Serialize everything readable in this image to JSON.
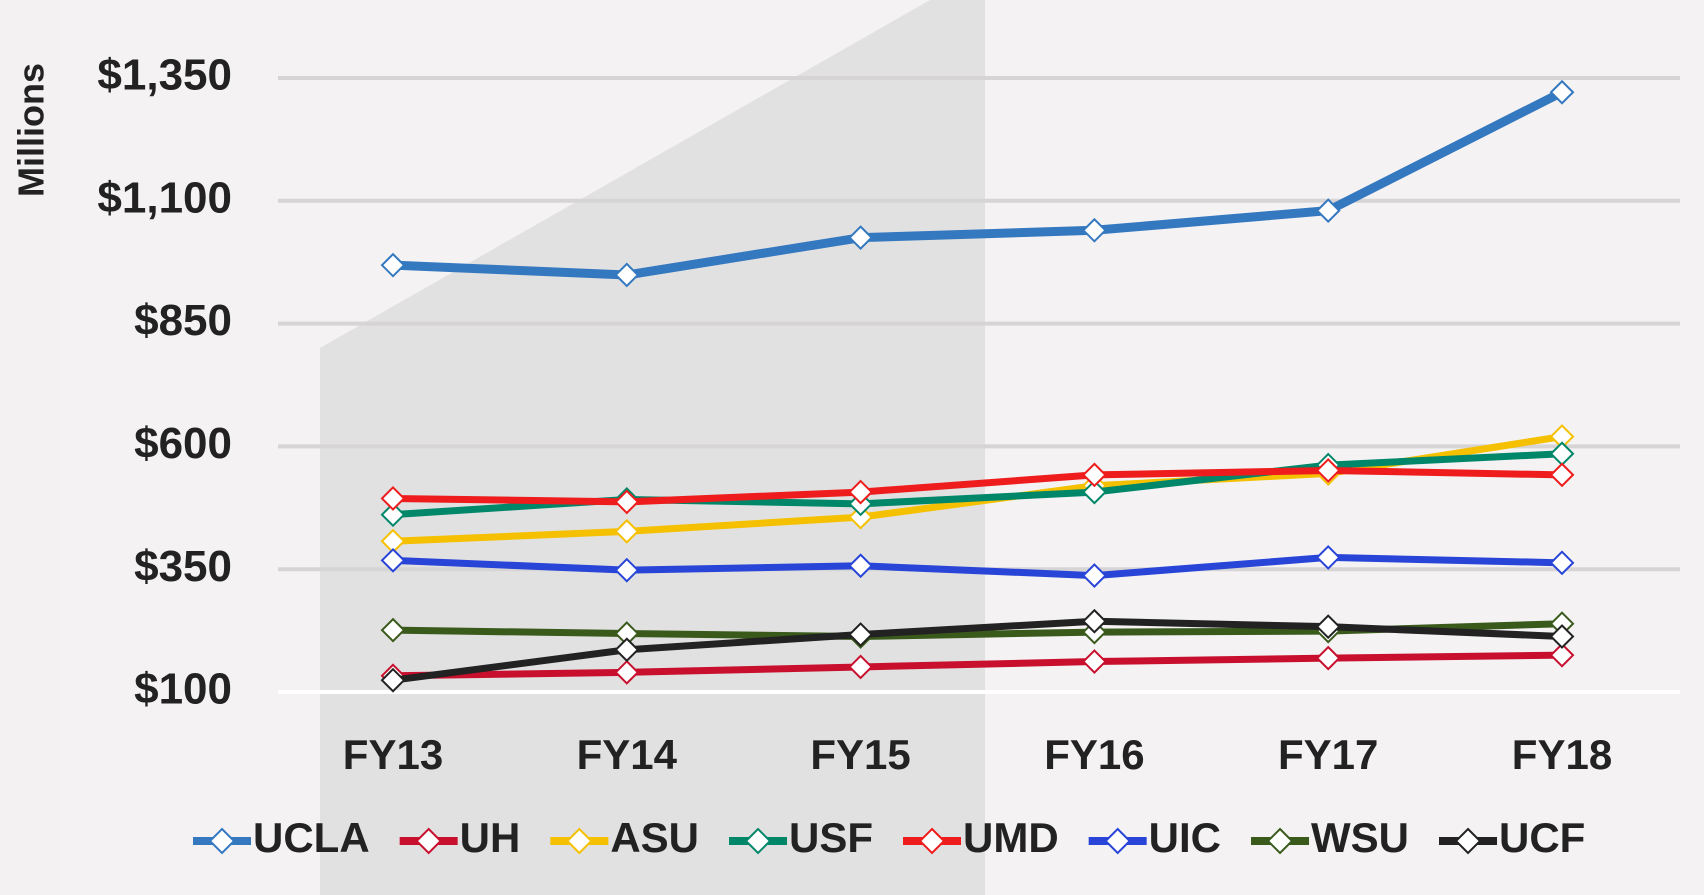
{
  "chart_data": {
    "type": "line",
    "y_label": "Millions",
    "categories": [
      "FY13",
      "FY14",
      "FY15",
      "FY16",
      "FY17",
      "FY18"
    ],
    "series": [
      {
        "name": "UCLA",
        "color": "#3478c0",
        "values": [
          969,
          949,
          1025,
          1040,
          1080,
          1321
        ]
      },
      {
        "name": "UH",
        "color": "#c8102e",
        "values": [
          133,
          140,
          151,
          162,
          169,
          175
        ]
      },
      {
        "name": "ASU",
        "color": "#f5c000",
        "values": [
          407,
          427,
          456,
          520,
          545,
          620
        ]
      },
      {
        "name": "USF",
        "color": "#00876a",
        "values": [
          461,
          492,
          483,
          507,
          562,
          585
        ]
      },
      {
        "name": "UMD",
        "color": "#ee1c1c",
        "values": [
          494,
          487,
          507,
          542,
          551,
          542
        ]
      },
      {
        "name": "UIC",
        "color": "#2845d8",
        "values": [
          368,
          348,
          357,
          337,
          374,
          363
        ]
      },
      {
        "name": "WSU",
        "color": "#3a5a1c",
        "values": [
          226,
          219,
          213,
          222,
          224,
          239
        ]
      },
      {
        "name": "UCF",
        "color": "#222222",
        "values": [
          124,
          186,
          217,
          244,
          233,
          213
        ]
      }
    ],
    "ylim": [
      100,
      1400
    ],
    "yticks": [
      {
        "value": 100,
        "label": "$100"
      },
      {
        "value": 350,
        "label": "$350"
      },
      {
        "value": 600,
        "label": "$600"
      },
      {
        "value": 850,
        "label": "$850"
      },
      {
        "value": 1100,
        "label": "$1,100"
      },
      {
        "value": 1350,
        "label": "$1,350"
      }
    ],
    "grid": true
  }
}
